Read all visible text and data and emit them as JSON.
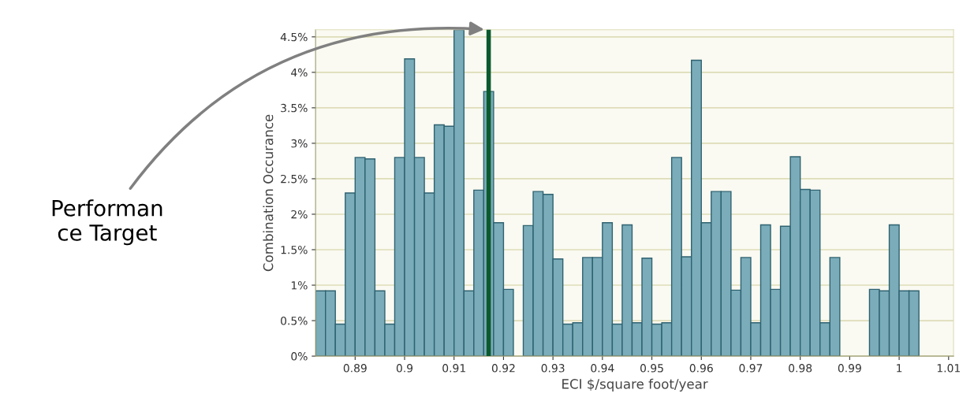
{
  "chart_data": {
    "type": "histogram",
    "xlabel": "ECI $/square foot/year",
    "ylabel": "Combination Occurance",
    "bins": [
      0.882,
      0.884,
      0.886,
      0.888,
      0.89,
      0.892,
      0.894,
      0.896,
      0.898,
      0.9,
      0.902,
      0.904,
      0.906,
      0.908,
      0.91,
      0.912,
      0.914,
      0.916,
      0.918,
      0.92,
      0.922,
      0.924,
      0.926,
      0.928,
      0.93,
      0.932,
      0.934,
      0.936,
      0.938,
      0.94,
      0.942,
      0.944,
      0.946,
      0.948,
      0.95,
      0.952,
      0.954,
      0.956,
      0.958,
      0.96,
      0.962,
      0.964,
      0.966,
      0.968,
      0.97,
      0.972,
      0.974,
      0.976,
      0.978,
      0.98,
      0.982,
      0.984,
      0.986,
      0.988,
      0.99,
      0.992,
      0.994,
      0.996,
      0.998,
      1.0,
      1.002,
      1.004
    ],
    "values": [
      0.92,
      0.92,
      0.45,
      2.3,
      2.8,
      2.78,
      0.92,
      0.45,
      2.8,
      4.19,
      2.8,
      2.3,
      3.26,
      3.24,
      4.6,
      0.92,
      2.34,
      3.73,
      1.88,
      0.94,
      0,
      1.84,
      2.32,
      2.28,
      1.37,
      0.45,
      0.47,
      1.39,
      1.39,
      1.88,
      0.45,
      1.85,
      0.47,
      1.38,
      0.45,
      0.47,
      2.8,
      1.4,
      4.17,
      1.88,
      2.32,
      2.32,
      0.93,
      1.39,
      0.47,
      1.85,
      0.94,
      1.83,
      2.81,
      2.35,
      2.34,
      0.47,
      1.39,
      0,
      0,
      0,
      0.94,
      0.92,
      1.85,
      0.92,
      0.92
    ],
    "color": "#7aacba",
    "xlim": [
      0.882,
      1.011
    ],
    "xticks": [
      0.89,
      0.9,
      0.91,
      0.92,
      0.93,
      0.94,
      0.95,
      0.96,
      0.97,
      0.98,
      0.99,
      {
        "value": 1.0,
        "label": "1"
      },
      1.01
    ],
    "ylim": [
      0,
      4.6
    ],
    "yticks": [
      {
        "value": 0,
        "label": "0%"
      },
      {
        "value": 0.5,
        "label": "0.5%"
      },
      {
        "value": 1,
        "label": "1%"
      },
      {
        "value": 1.5,
        "label": "1.5%"
      },
      {
        "value": 2,
        "label": "2%"
      },
      {
        "value": 2.5,
        "label": "2.5%"
      },
      {
        "value": 3,
        "label": "3%"
      },
      {
        "value": 3.5,
        "label": "3.5%"
      },
      {
        "value": 4,
        "label": "4%"
      },
      {
        "value": 4.5,
        "label": "4.5%"
      }
    ],
    "grid": "y",
    "ref_lines": [
      {
        "axis": "x",
        "value": 0.917,
        "label": "Performan\nce Target",
        "color": "#0b5a2e",
        "line_style": "solid"
      }
    ]
  }
}
